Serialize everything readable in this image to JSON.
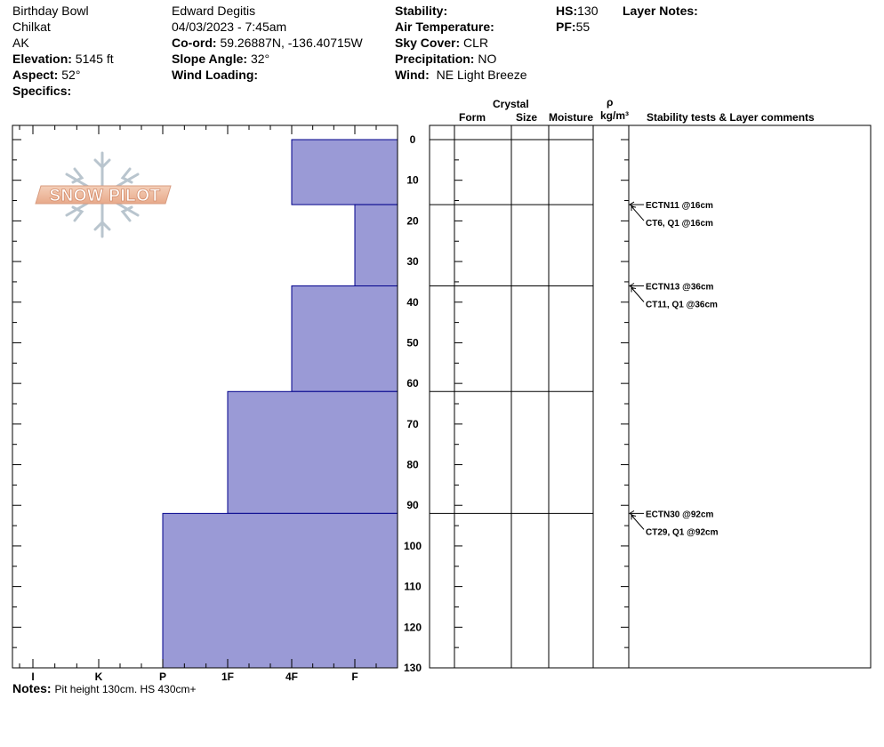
{
  "header": {
    "location": "Birthday Bowl",
    "range": "Chilkat",
    "state": "AK",
    "elevation_label": "Elevation:",
    "elevation_value": "5145 ft",
    "aspect_label": "Aspect:",
    "aspect_value": "52°",
    "specifics_label": "Specifics:",
    "observer": "Edward Degitis",
    "datetime": "04/03/2023 - 7:45am",
    "coord_label": "Co-ord:",
    "coord_value": "59.26887N, -136.40715W",
    "slope_label": "Slope Angle:",
    "slope_value": "32°",
    "wind_loading_label": "Wind Loading:",
    "stability_label": "Stability:",
    "air_temp_label": "Air Temperature:",
    "sky_label": "Sky Cover:",
    "sky_value": "CLR",
    "precip_label": "Precipitation:",
    "precip_value": "NO",
    "wind_label": "Wind:",
    "wind_value": "NE Light Breeze",
    "hs_label": "HS:",
    "hs_value": "130",
    "pf_label": "PF:",
    "pf_value": "55",
    "layer_notes_label": "Layer Notes:"
  },
  "logo_text": "SNOW PILOT",
  "columns": {
    "crystal": "Crystal",
    "form": "Form",
    "size": "Size",
    "moisture": "Moisture",
    "rho": "ρ",
    "density_unit": "kg/m³",
    "comments": "Stability tests & Layer comments"
  },
  "notes": {
    "label": "Notes:",
    "text": "Pit height 130cm. HS 430cm+"
  },
  "colors": {
    "hardness_fill": "#9a9ad6",
    "hardness_stroke": "#00008b"
  },
  "chart_data": {
    "type": "bar",
    "orientation": "horizontal",
    "depth_ticks": [
      "0",
      "10",
      "20",
      "30",
      "40",
      "50",
      "60",
      "70",
      "80",
      "90",
      "100",
      "110",
      "120",
      "130"
    ],
    "ylim": [
      0,
      130
    ],
    "hardness_ticks": [
      "I",
      "K",
      "P",
      "1F",
      "4F",
      "F"
    ],
    "layers": [
      {
        "top": 0,
        "bottom": 16,
        "hardness": "4F"
      },
      {
        "top": 16,
        "bottom": 36,
        "hardness": "F"
      },
      {
        "top": 36,
        "bottom": 62,
        "hardness": "4F"
      },
      {
        "top": 62,
        "bottom": 92,
        "hardness": "1F"
      },
      {
        "top": 92,
        "bottom": 130,
        "hardness": "P"
      }
    ],
    "tests": [
      {
        "depth": 16,
        "labels": [
          "ECTN11 @16cm",
          "CT6, Q1 @16cm"
        ]
      },
      {
        "depth": 36,
        "labels": [
          "ECTN13 @36cm",
          "CT11, Q1 @36cm"
        ]
      },
      {
        "depth": 92,
        "labels": [
          "ECTN30 @92cm",
          "CT29, Q1 @92cm"
        ]
      }
    ]
  }
}
